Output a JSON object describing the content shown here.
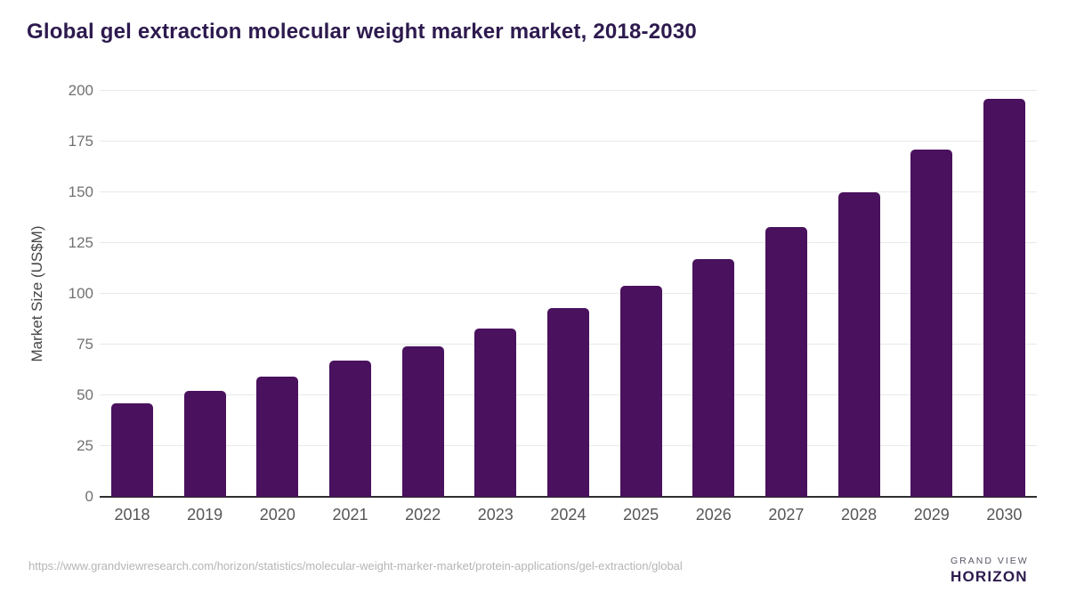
{
  "title": "Global gel extraction molecular weight marker market, 2018-2030",
  "chart_data": {
    "type": "bar",
    "categories": [
      "2018",
      "2019",
      "2020",
      "2021",
      "2022",
      "2023",
      "2024",
      "2025",
      "2026",
      "2027",
      "2028",
      "2029",
      "2030"
    ],
    "values": [
      46,
      52,
      59,
      67,
      74,
      83,
      93,
      104,
      117,
      133,
      150,
      171,
      196
    ],
    "title": "Global gel extraction molecular weight marker market, 2018-2030",
    "xlabel": "",
    "ylabel": "Market Size (US$M)",
    "ylim": [
      0,
      200
    ],
    "yticks": [
      0,
      25,
      50,
      75,
      100,
      125,
      150,
      175,
      200
    ],
    "grid": "horizontal",
    "legend": "none",
    "bar_color": "#4a115e"
  },
  "footer": {
    "source_url": "https://www.grandviewresearch.com/horizon/statistics/molecular-weight-marker-market/protein-applications/gel-extraction/global",
    "logo": {
      "line1": "GRAND VIEW",
      "line2": "HORIZON",
      "circle_top_color": "#2d1a4e",
      "circle_bottom_color": "#56c4f0"
    }
  },
  "colors": {
    "title_text": "#2d1a4e",
    "bar": "#4a115e",
    "gridline": "#e9e9e9",
    "baseline": "#2f2f2f",
    "tick_label": "#717171",
    "year_label": "#565656",
    "axis_title": "#454545",
    "url_text": "#b5b5b5"
  }
}
